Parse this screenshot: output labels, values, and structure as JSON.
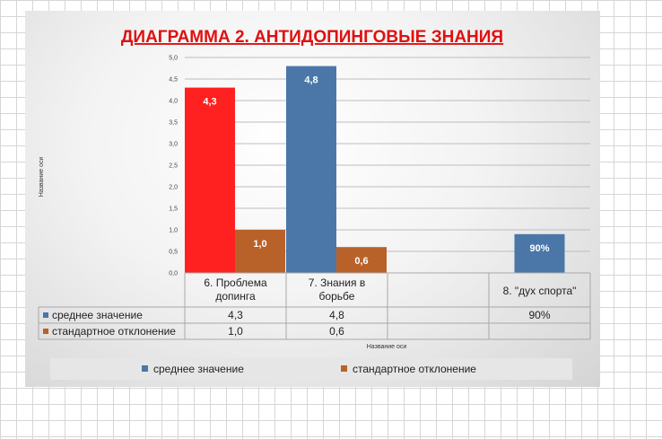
{
  "chart_data": {
    "type": "bar",
    "title": "ДИАГРАММА 2. АНТИДОПИНГОВЫЕ ЗНАНИЯ",
    "ylabel": "Название оси",
    "xlabel": "Название оси",
    "ylim": [
      0,
      5
    ],
    "yticks": [
      "0,0",
      "0,5",
      "1,0",
      "1,5",
      "2,0",
      "2,5",
      "3,0",
      "3,5",
      "4,0",
      "4,5",
      "5,0"
    ],
    "categories": [
      [
        "6. Проблема",
        "допинга"
      ],
      [
        "7. Знания в",
        "борьбе"
      ],
      [
        ""
      ],
      [
        "8. \"дух спорта\""
      ]
    ],
    "series": [
      {
        "name": "среднее значение",
        "color": "#4a77a8",
        "values": [
          4.3,
          4.8,
          null,
          0.9
        ],
        "labels": [
          "4,3",
          "4,8",
          "",
          "90%"
        ],
        "table_values": [
          "4,3",
          "4,8",
          "",
          "90%"
        ],
        "point_colors": [
          "#ff2020",
          "#4a77a8",
          "#4a77a8",
          "#4a77a8"
        ]
      },
      {
        "name": "стандартное отклонение",
        "color": "#b8622a",
        "values": [
          1.0,
          0.6,
          null,
          null
        ],
        "labels": [
          "1,0",
          "0,6",
          "",
          ""
        ],
        "table_values": [
          "1,0",
          "0,6",
          "",
          ""
        ],
        "point_colors": [
          "#b8622a",
          "#b8622a",
          "#b8622a",
          "#b8622a"
        ]
      }
    ],
    "title_color": "#e01010",
    "grid": true,
    "legend_position": "bottom"
  }
}
